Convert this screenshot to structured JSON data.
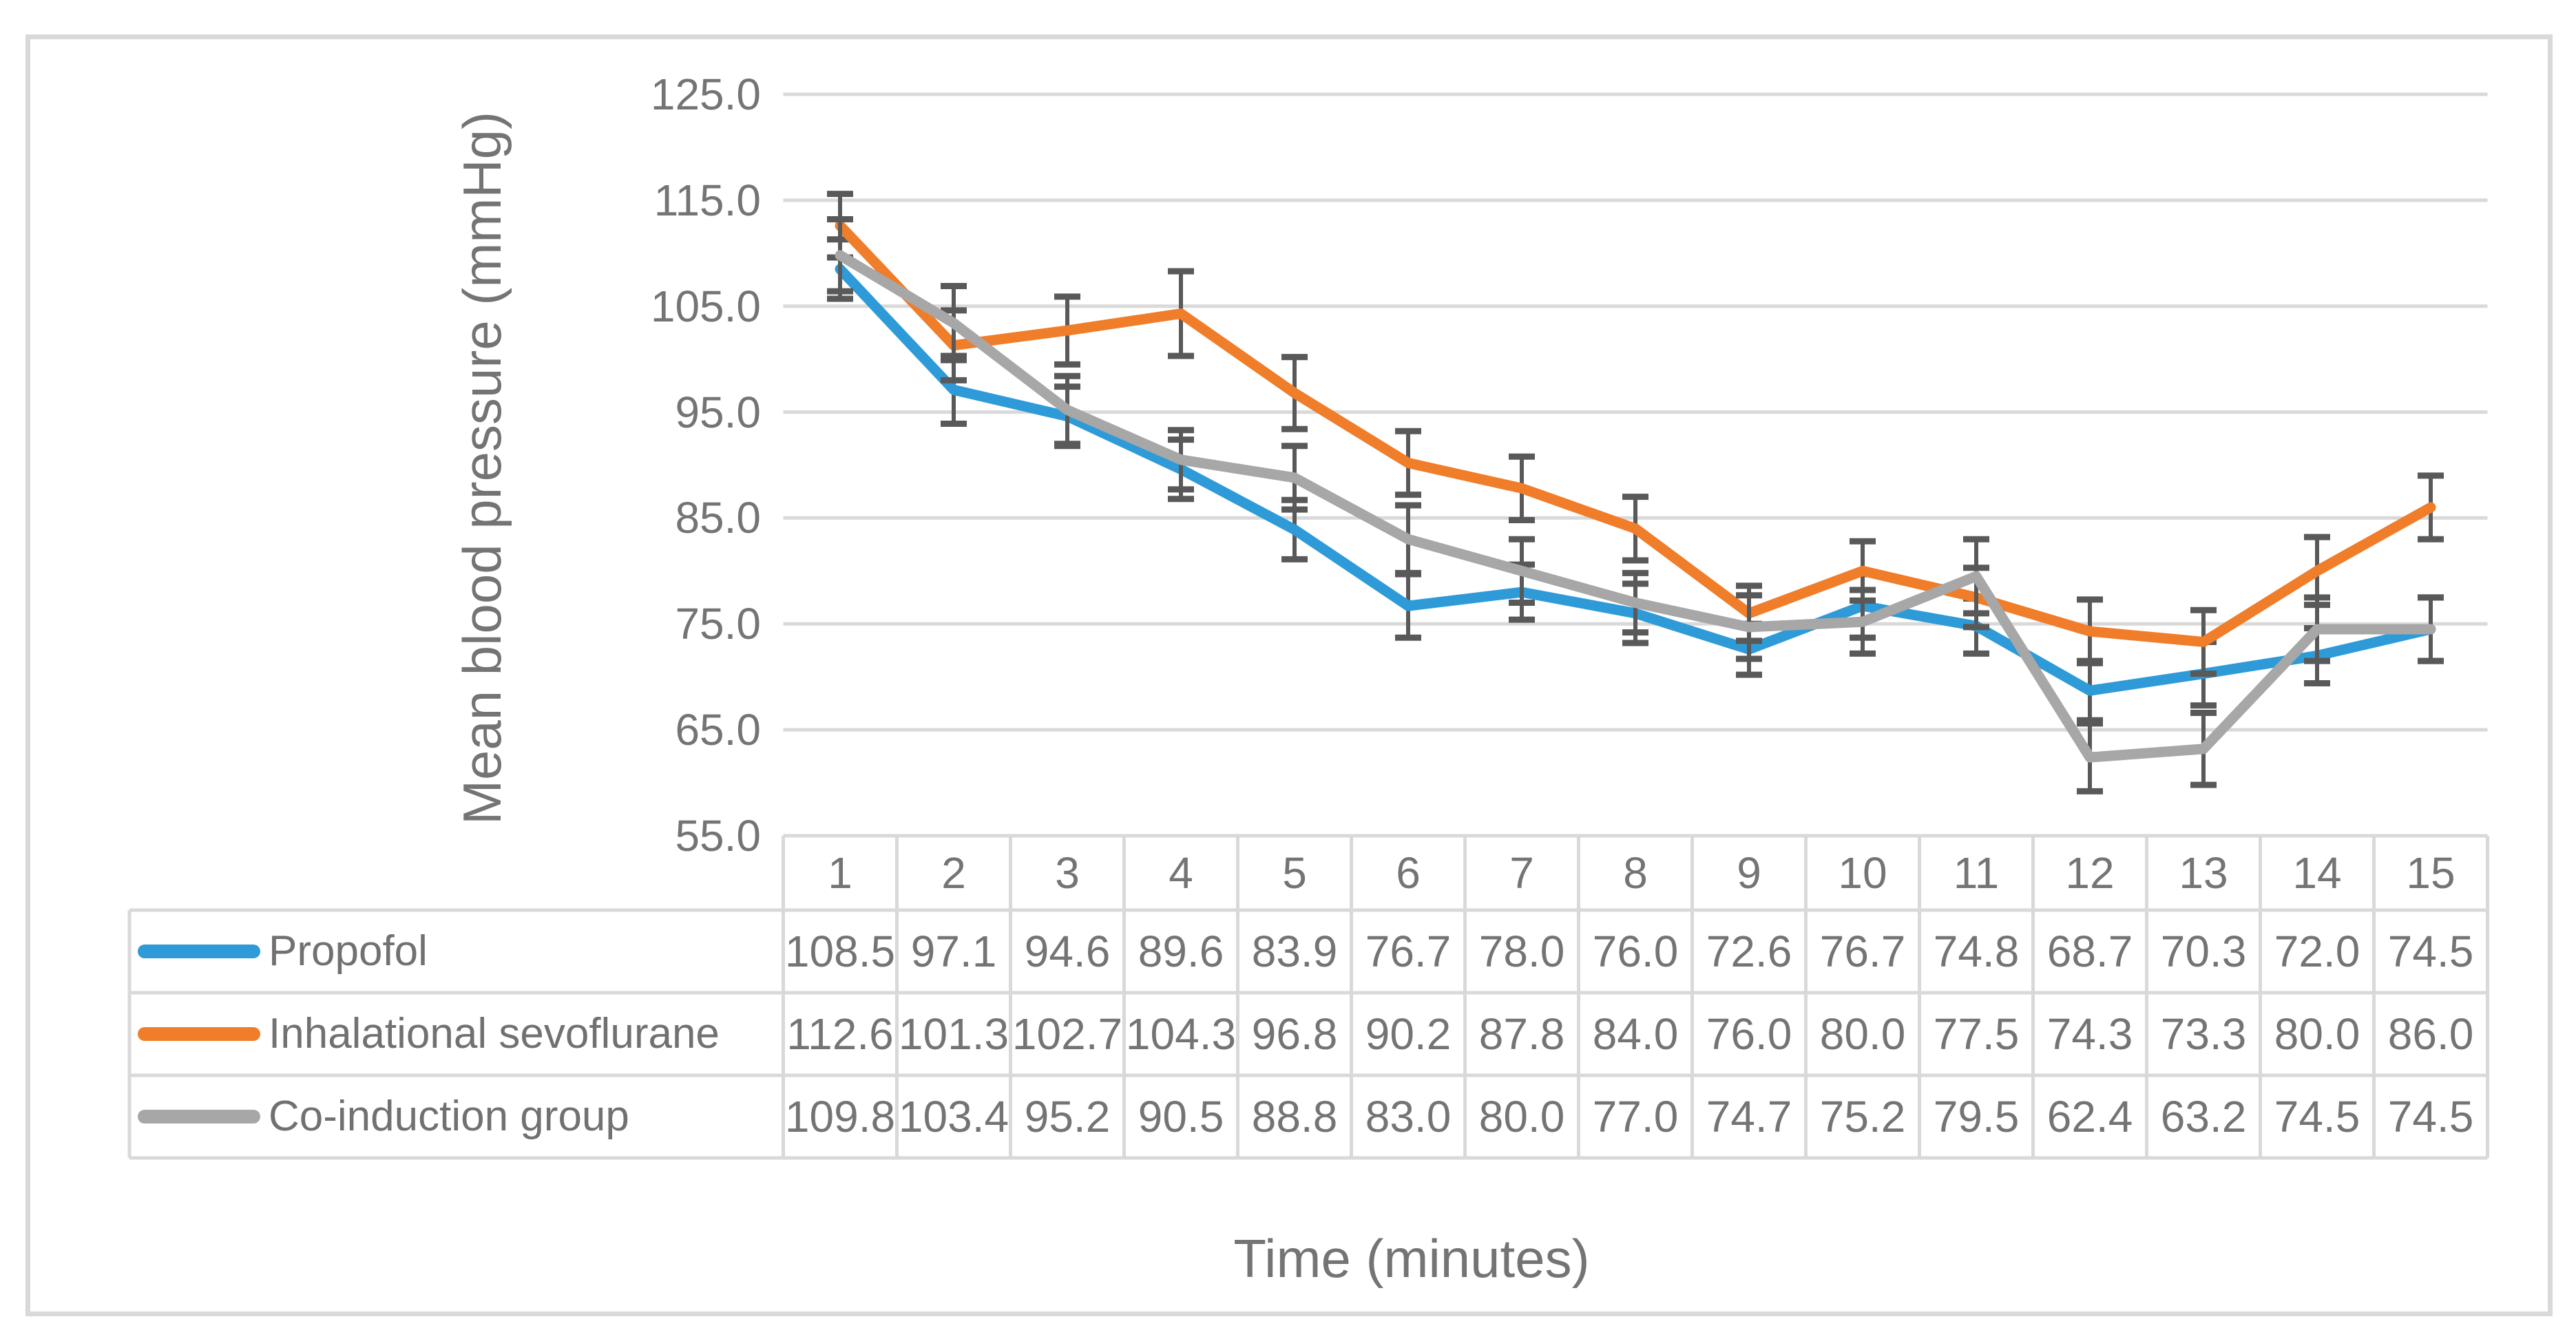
{
  "figure": {
    "border_color": "#d9d9d9",
    "background": "#ffffff"
  },
  "chart_data": {
    "type": "line",
    "title": "",
    "xlabel": "Time (minutes)",
    "ylabel": "Mean blood pressure (mmHg)",
    "categories": [
      "1",
      "2",
      "3",
      "4",
      "5",
      "6",
      "7",
      "8",
      "9",
      "10",
      "11",
      "12",
      "13",
      "14",
      "15"
    ],
    "ylim": [
      55,
      125
    ],
    "ytick_step": 10,
    "ytick_labels": [
      "125.0",
      "115.0",
      "105.0",
      "95.0",
      "85.0",
      "75.0",
      "65.0",
      "55.0"
    ],
    "grid": true,
    "legend_position": "left-of-data-table",
    "error_bars": true,
    "series": [
      {
        "name": "Propofol",
        "color": "#2E9BD8",
        "values": [
          108.5,
          97.1,
          94.6,
          89.6,
          83.9,
          76.7,
          78.0,
          76.0,
          72.6,
          76.7,
          74.8,
          68.7,
          70.3,
          72.0,
          74.5
        ],
        "errors": [
          2.8,
          3.2,
          2.8,
          2.8,
          2.8,
          3.0,
          2.6,
          2.8,
          2.4,
          3.0,
          2.6,
          2.8,
          3.0,
          2.6,
          3.0
        ]
      },
      {
        "name": "Inhalational sevoflurane",
        "color": "#F07D2A",
        "values": [
          112.6,
          101.3,
          102.7,
          104.3,
          96.8,
          90.2,
          87.8,
          84.0,
          76.0,
          80.0,
          77.5,
          74.3,
          73.3,
          80.0,
          86.0
        ],
        "errors": [
          3.0,
          3.3,
          3.2,
          4.0,
          3.4,
          3.0,
          3.0,
          3.0,
          2.6,
          2.8,
          2.8,
          3.0,
          3.0,
          3.2,
          3.0
        ]
      },
      {
        "name": "Co-induction group",
        "color": "#A7A7A7",
        "values": [
          109.8,
          103.4,
          95.2,
          90.5,
          88.8,
          83.0,
          80.0,
          77.0,
          74.7,
          75.2,
          79.5,
          62.4,
          63.2,
          74.5,
          74.5
        ],
        "errors": [
          3.4,
          3.5,
          3.2,
          2.8,
          3.0,
          3.2,
          3.0,
          2.8,
          3.0,
          3.0,
          3.5,
          3.2,
          3.4,
          3.0,
          3.0
        ]
      }
    ],
    "gridline_color": "#D9D9D9",
    "table_line_color": "#D9D9D9",
    "error_bar_color": "#595959",
    "text_color": "#747474"
  }
}
